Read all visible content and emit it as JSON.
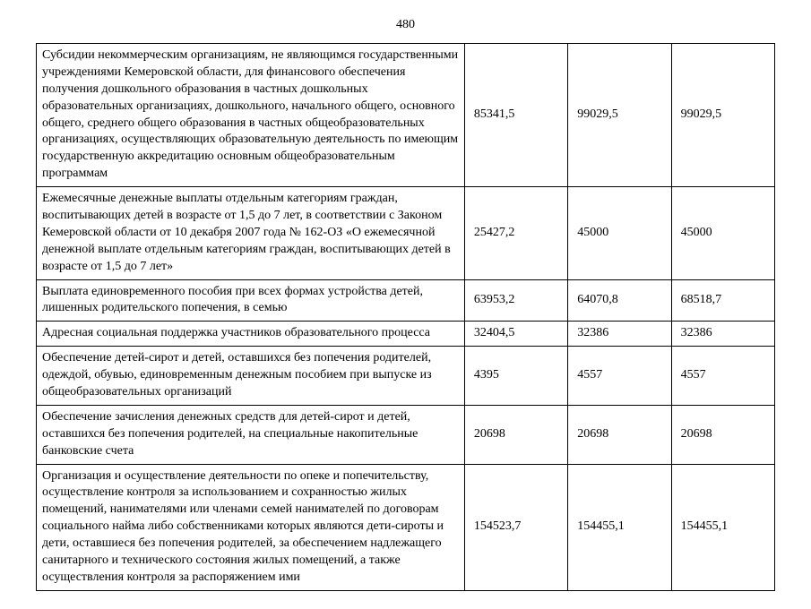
{
  "page_number": "480",
  "table": {
    "columns": [
      "description",
      "col1",
      "col2",
      "col3"
    ],
    "rows": [
      {
        "desc": "Субсидии некоммерческим организациям, не являющимся государственными учреждениями Кемеровской области, для финансового обеспечения получения дошкольного образования в частных дошкольных образовательных организациях, дошкольного, начального общего, основного общего, среднего общего образования в частных общеобразовательных организациях, осуществляющих образовательную деятельность по имеющим государственную аккредитацию основным общеобразовательным программам",
        "c1": "85341,5",
        "c2": "99029,5",
        "c3": "99029,5"
      },
      {
        "desc": "Ежемесячные денежные выплаты отдельным категориям граждан, воспитывающих детей в возрасте от 1,5 до 7 лет, в соответствии с Законом Кемеровской области от 10 декабря 2007 года № 162-ОЗ «О ежемесячной денежной выплате отдельным категориям граждан, воспитывающих детей в возрасте от 1,5 до 7 лет»",
        "c1": "25427,2",
        "c2": "45000",
        "c3": "45000"
      },
      {
        "desc": "Выплата единовременного пособия при всех формах устройства детей, лишенных родительского попечения, в семью",
        "c1": "63953,2",
        "c2": "64070,8",
        "c3": "68518,7"
      },
      {
        "desc": "Адресная социальная поддержка участников образовательного процесса",
        "c1": "32404,5",
        "c2": "32386",
        "c3": "32386"
      },
      {
        "desc": "Обеспечение детей-сирот и детей, оставшихся без попечения родителей, одеждой, обувью, единовременным денежным пособием при выпуске из общеобразовательных организаций",
        "c1": "4395",
        "c2": "4557",
        "c3": "4557"
      },
      {
        "desc": "Обеспечение зачисления денежных средств для детей-сирот и детей, оставшихся без попечения родителей, на специальные накопительные банковские счета",
        "c1": "20698",
        "c2": "20698",
        "c3": "20698"
      },
      {
        "desc": "Организация и осуществление деятельности по опеке и попечительству, осуществление контроля за использованием и сохранностью жилых помещений, нанимателями или членами семей нанимателей по договорам социального найма либо собственниками которых являются дети-сироты и дети, оставшиеся без попечения родителей, за обеспечением надлежащего санитарного и технического состояния жилых помещений, а также осуществления контроля за распоряжением ими",
        "c1": "154523,7",
        "c2": "154455,1",
        "c3": "154455,1"
      }
    ]
  }
}
